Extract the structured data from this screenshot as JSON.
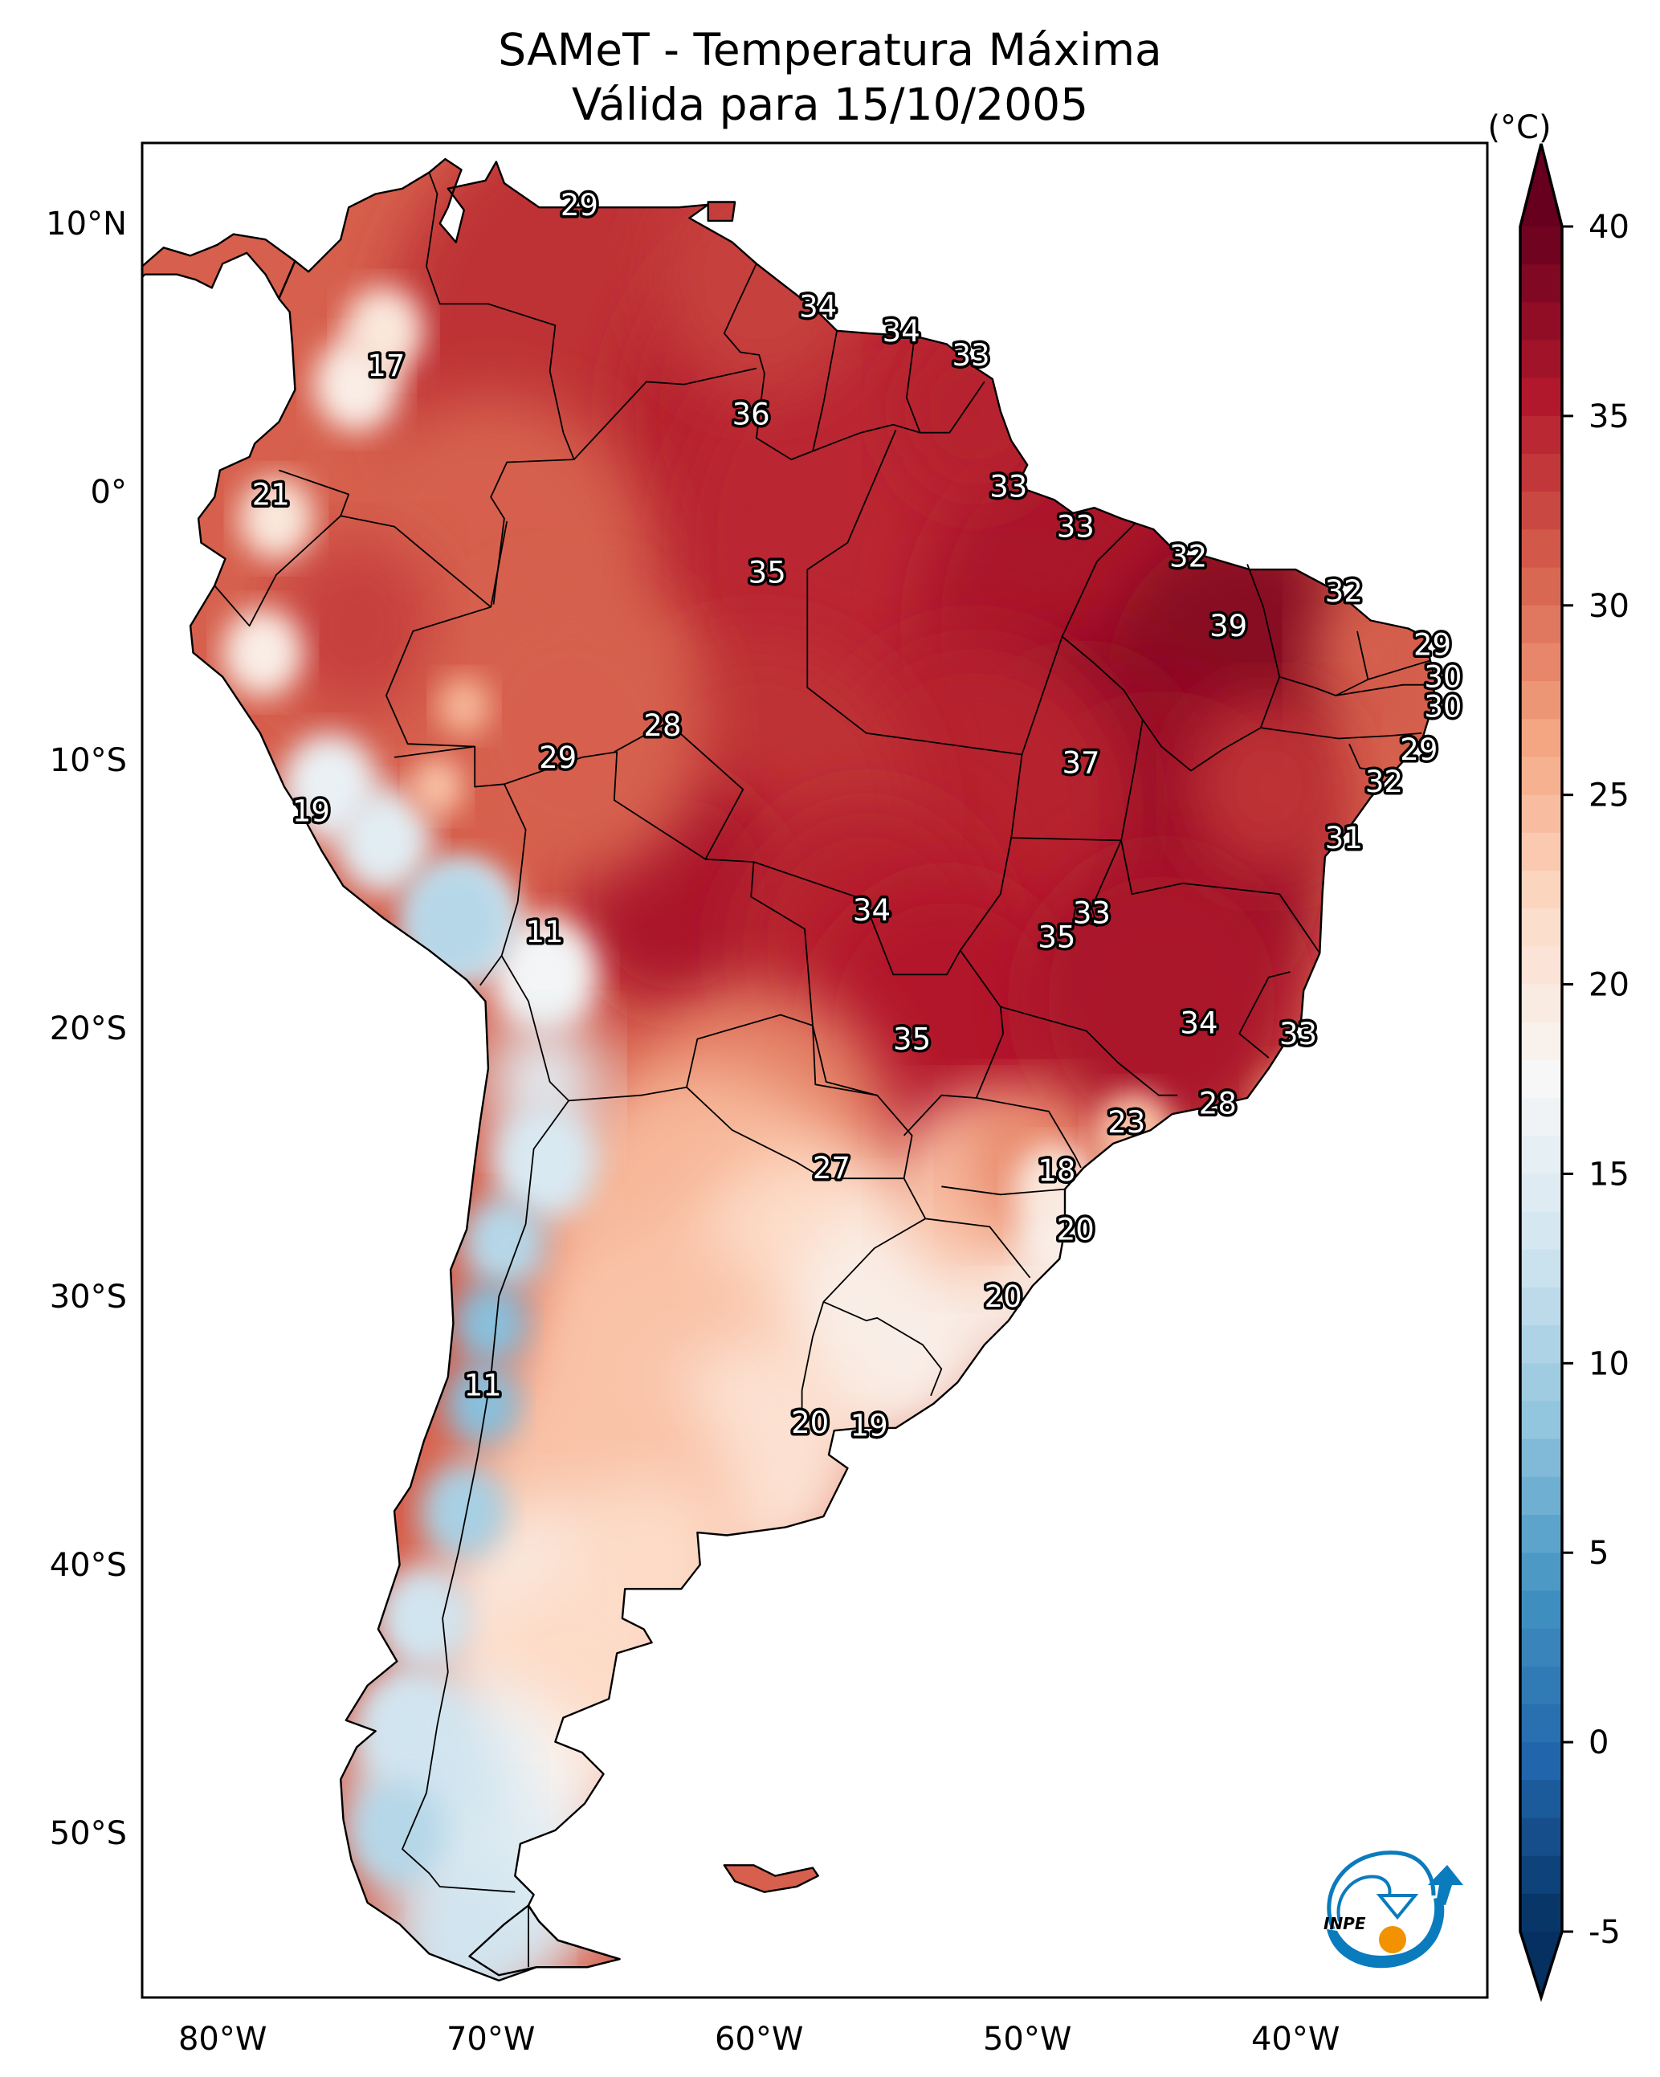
{
  "title": {
    "line1": "SAMeT - Temperatura Máxima",
    "line2": "Válida para 15/10/2005"
  },
  "chart_data": {
    "type": "heatmap",
    "title": "SAMeT - Temperatura Máxima Válida para 15/10/2005",
    "variable": "Temperatura Máxima",
    "colorbar": {
      "label": "(°C)",
      "min": -5,
      "max": 40,
      "extend": "both",
      "ticks": [
        40,
        35,
        30,
        25,
        20,
        15,
        10,
        5,
        0,
        -5
      ],
      "tick_labels": [
        "40",
        "35",
        "30",
        "25",
        "20",
        "15",
        "10",
        "5",
        "0",
        "-5"
      ],
      "colormap": "RdBu_r",
      "colors": [
        "#053061",
        "#2166ac",
        "#4393c3",
        "#92c5de",
        "#d1e5f0",
        "#f7f7f7",
        "#fddbc7",
        "#f4a582",
        "#d6604d",
        "#b2182b",
        "#67001f"
      ]
    },
    "xaxis": {
      "range": [
        -83,
        -33
      ],
      "ticks": [
        -80,
        -70,
        -60,
        -50,
        -40
      ],
      "tick_labels": [
        "80°W",
        "70°W",
        "60°W",
        "50°W",
        "40°W"
      ]
    },
    "yaxis": {
      "range": [
        -56.1,
        13
      ],
      "ticks": [
        10,
        0,
        -10,
        -20,
        -30,
        -40,
        -50
      ],
      "tick_labels": [
        "10°N",
        "0°",
        "10°S",
        "20°S",
        "30°S",
        "40°S",
        "50°S"
      ]
    },
    "stations": [
      {
        "lon": -66.7,
        "lat": 10.7,
        "value": "29"
      },
      {
        "lon": -73.9,
        "lat": 4.7,
        "value": "17"
      },
      {
        "lon": -57.8,
        "lat": 6.9,
        "value": "34"
      },
      {
        "lon": -54.7,
        "lat": 6.0,
        "value": "34"
      },
      {
        "lon": -52.1,
        "lat": 5.1,
        "value": "33"
      },
      {
        "lon": -60.3,
        "lat": 2.9,
        "value": "36"
      },
      {
        "lon": -78.2,
        "lat": -0.1,
        "value": "21"
      },
      {
        "lon": -50.7,
        "lat": 0.2,
        "value": "33"
      },
      {
        "lon": -48.2,
        "lat": -1.3,
        "value": "33"
      },
      {
        "lon": -59.7,
        "lat": -3.0,
        "value": "35"
      },
      {
        "lon": -44.0,
        "lat": -2.4,
        "value": "32"
      },
      {
        "lon": -38.2,
        "lat": -3.7,
        "value": "32"
      },
      {
        "lon": -42.5,
        "lat": -5.0,
        "value": "39"
      },
      {
        "lon": -34.9,
        "lat": -5.7,
        "value": "29"
      },
      {
        "lon": -34.5,
        "lat": -6.9,
        "value": "30"
      },
      {
        "lon": -34.5,
        "lat": -8.0,
        "value": "30"
      },
      {
        "lon": -63.6,
        "lat": -8.7,
        "value": "28"
      },
      {
        "lon": -67.5,
        "lat": -9.9,
        "value": "29"
      },
      {
        "lon": -48.0,
        "lat": -10.1,
        "value": "37"
      },
      {
        "lon": -35.4,
        "lat": -9.6,
        "value": "29"
      },
      {
        "lon": -36.7,
        "lat": -10.8,
        "value": "32"
      },
      {
        "lon": -76.7,
        "lat": -11.9,
        "value": "19"
      },
      {
        "lon": -38.2,
        "lat": -12.9,
        "value": "31"
      },
      {
        "lon": -55.8,
        "lat": -15.6,
        "value": "34"
      },
      {
        "lon": -47.6,
        "lat": -15.7,
        "value": "33"
      },
      {
        "lon": -48.9,
        "lat": -16.6,
        "value": "35"
      },
      {
        "lon": -68.0,
        "lat": -16.4,
        "value": "11"
      },
      {
        "lon": -43.6,
        "lat": -19.8,
        "value": "34"
      },
      {
        "lon": -39.9,
        "lat": -20.2,
        "value": "33"
      },
      {
        "lon": -54.3,
        "lat": -20.4,
        "value": "35"
      },
      {
        "lon": -42.9,
        "lat": -22.8,
        "value": "28"
      },
      {
        "lon": -46.3,
        "lat": -23.5,
        "value": "23"
      },
      {
        "lon": -57.3,
        "lat": -25.2,
        "value": "27"
      },
      {
        "lon": -48.9,
        "lat": -25.3,
        "value": "18"
      },
      {
        "lon": -48.2,
        "lat": -27.5,
        "value": "20"
      },
      {
        "lon": -50.9,
        "lat": -30.0,
        "value": "20"
      },
      {
        "lon": -70.3,
        "lat": -33.3,
        "value": "11"
      },
      {
        "lon": -58.1,
        "lat": -34.7,
        "value": "20"
      },
      {
        "lon": -55.9,
        "lat": -34.8,
        "value": "19"
      }
    ]
  },
  "logo": {
    "text": "INPE",
    "blue": "#0a7bbd",
    "orange": "#f39200"
  }
}
